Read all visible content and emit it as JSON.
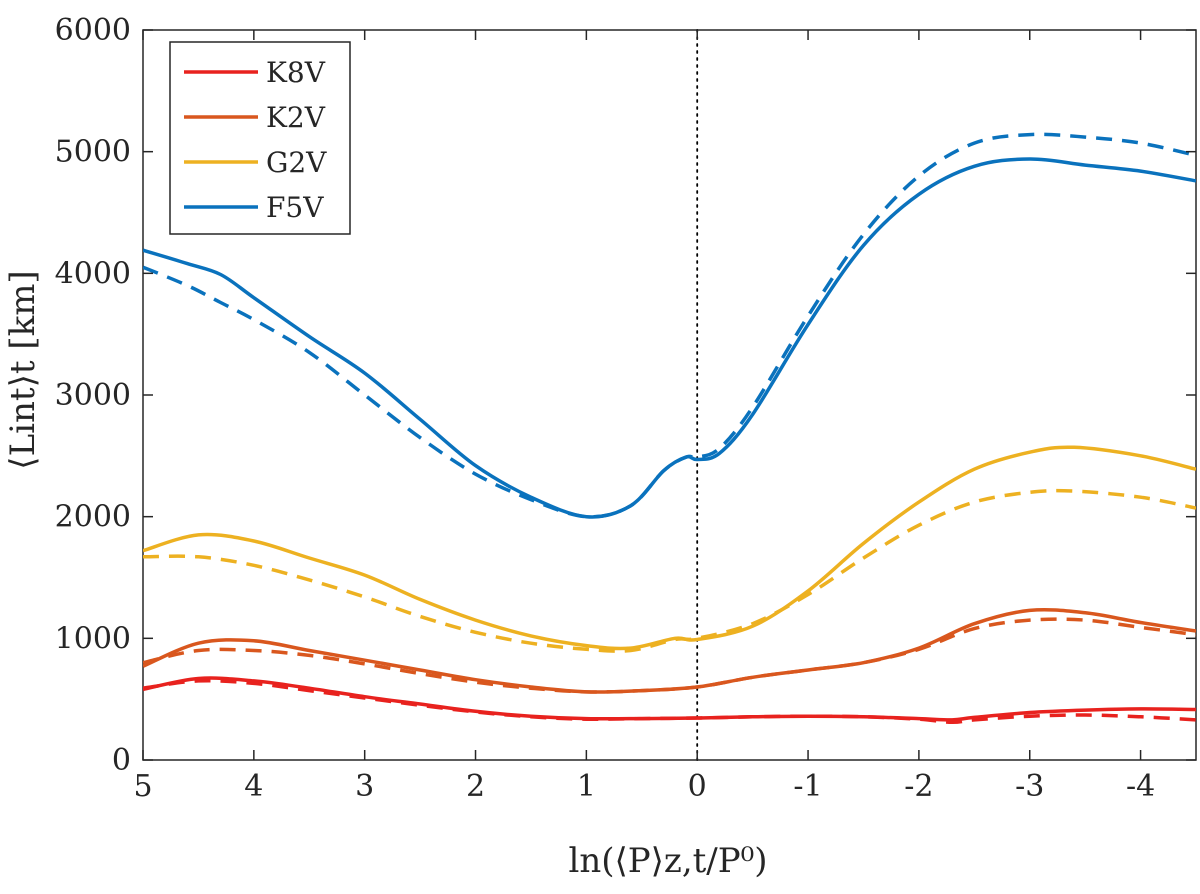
{
  "chart_data": {
    "type": "line",
    "xlabel": "ln(⟨P⟩z,t/P⁰)",
    "ylabel": "⟨Lint⟩t [km]",
    "xlim": [
      5,
      -4.5
    ],
    "ylim": [
      0,
      6000
    ],
    "x_reversed": true,
    "xticks": [
      5,
      4,
      3,
      2,
      1,
      0,
      -1,
      -2,
      -3,
      -4
    ],
    "xtick_labels": [
      "5",
      "4",
      "3",
      "2",
      "1",
      "0",
      "-1",
      "-2",
      "-3",
      "-4"
    ],
    "yticks": [
      0,
      1000,
      2000,
      3000,
      4000,
      5000,
      6000
    ],
    "ytick_labels": [
      "0",
      "1000",
      "2000",
      "3000",
      "4000",
      "5000",
      "6000"
    ],
    "reference_line": {
      "x": 0,
      "style": "dotted"
    },
    "legend": {
      "position": "top-left",
      "entries": [
        "K8V",
        "K2V",
        "G2V",
        "F5V"
      ]
    },
    "series": [
      {
        "name": "K8V",
        "color": "#e8221e",
        "style": "solid",
        "x": [
          5,
          4.5,
          4,
          3.5,
          3,
          2.5,
          2,
          1.5,
          1,
          0.5,
          0,
          -0.5,
          -1,
          -1.5,
          -2,
          -2.3,
          -2.5,
          -3,
          -3.5,
          -4,
          -4.5
        ],
        "y": [
          580,
          670,
          650,
          590,
          520,
          460,
          400,
          360,
          340,
          340,
          345,
          355,
          360,
          355,
          340,
          330,
          350,
          390,
          410,
          420,
          415
        ]
      },
      {
        "name": "K8V",
        "color": "#e8221e",
        "style": "dashed",
        "x": [
          5,
          4.5,
          4,
          3.5,
          3,
          2.5,
          2,
          1.5,
          1,
          0.5,
          0,
          -0.5,
          -1,
          -1.5,
          -2,
          -2.3,
          -2.5,
          -3,
          -3.5,
          -4,
          -4.5
        ],
        "y": [
          590,
          650,
          630,
          570,
          510,
          450,
          395,
          355,
          335,
          340,
          345,
          355,
          360,
          355,
          335,
          310,
          330,
          360,
          370,
          355,
          330
        ]
      },
      {
        "name": "K2V",
        "color": "#d9571e",
        "style": "solid",
        "x": [
          5,
          4.5,
          4,
          3.5,
          3,
          2.5,
          2,
          1.5,
          1,
          0.5,
          0,
          -0.5,
          -1,
          -1.5,
          -2,
          -2.5,
          -3,
          -3.5,
          -4,
          -4.5
        ],
        "y": [
          770,
          960,
          980,
          900,
          820,
          740,
          660,
          600,
          560,
          570,
          600,
          680,
          740,
          800,
          920,
          1120,
          1230,
          1210,
          1130,
          1060
        ]
      },
      {
        "name": "K2V",
        "color": "#d9571e",
        "style": "dashed",
        "x": [
          5,
          4.5,
          4,
          3.5,
          3,
          2.5,
          2,
          1.5,
          1,
          0.5,
          0,
          -0.5,
          -1,
          -1.5,
          -2,
          -2.5,
          -3,
          -3.5,
          -4,
          -4.5
        ],
        "y": [
          800,
          900,
          900,
          860,
          790,
          710,
          640,
          590,
          560,
          570,
          600,
          680,
          740,
          800,
          910,
          1080,
          1150,
          1150,
          1090,
          1030
        ]
      },
      {
        "name": "G2V",
        "color": "#edb121",
        "style": "solid",
        "x": [
          5,
          4.5,
          4,
          3.5,
          3,
          2.5,
          2,
          1.5,
          1,
          0.6,
          0.2,
          0,
          -0.5,
          -1,
          -1.5,
          -2,
          -2.5,
          -3,
          -3.4,
          -4,
          -4.5
        ],
        "y": [
          1720,
          1850,
          1800,
          1660,
          1520,
          1320,
          1150,
          1020,
          940,
          920,
          1000,
          990,
          1100,
          1390,
          1780,
          2120,
          2390,
          2530,
          2570,
          2500,
          2390
        ]
      },
      {
        "name": "G2V",
        "color": "#edb121",
        "style": "dashed",
        "x": [
          5,
          4.5,
          4,
          3.5,
          3,
          2.5,
          2,
          1.5,
          1,
          0.6,
          0.2,
          0,
          -0.5,
          -1,
          -1.5,
          -2,
          -2.5,
          -3,
          -3.4,
          -4,
          -4.5
        ],
        "y": [
          1670,
          1670,
          1600,
          1480,
          1340,
          1180,
          1050,
          960,
          910,
          900,
          990,
          1000,
          1120,
          1360,
          1660,
          1930,
          2120,
          2200,
          2210,
          2160,
          2070
        ]
      },
      {
        "name": "F5V",
        "color": "#0a72bd",
        "style": "solid",
        "x": [
          5,
          4.6,
          4.3,
          4,
          3.5,
          3,
          2.5,
          2,
          1.5,
          1,
          0.6,
          0.3,
          0.1,
          0,
          -0.2,
          -0.5,
          -1,
          -1.5,
          -2,
          -2.5,
          -3,
          -3.5,
          -4,
          -4.5
        ],
        "y": [
          4190,
          4080,
          3990,
          3800,
          3480,
          3180,
          2800,
          2420,
          2160,
          2000,
          2090,
          2380,
          2490,
          2470,
          2520,
          2840,
          3580,
          4230,
          4650,
          4880,
          4940,
          4890,
          4840,
          4760
        ]
      },
      {
        "name": "F5V",
        "color": "#0a72bd",
        "style": "dashed",
        "x": [
          5,
          4.6,
          4.3,
          4,
          3.5,
          3,
          2.5,
          2,
          1.5,
          1,
          0.6,
          0.3,
          0.1,
          0,
          -0.2,
          -0.5,
          -1,
          -1.5,
          -2,
          -2.5,
          -3,
          -3.5,
          -4,
          -4.5
        ],
        "y": [
          4050,
          3900,
          3760,
          3620,
          3350,
          3000,
          2650,
          2350,
          2140,
          2000,
          2090,
          2380,
          2490,
          2490,
          2560,
          2900,
          3650,
          4320,
          4800,
          5070,
          5140,
          5120,
          5070,
          4970
        ]
      }
    ]
  }
}
